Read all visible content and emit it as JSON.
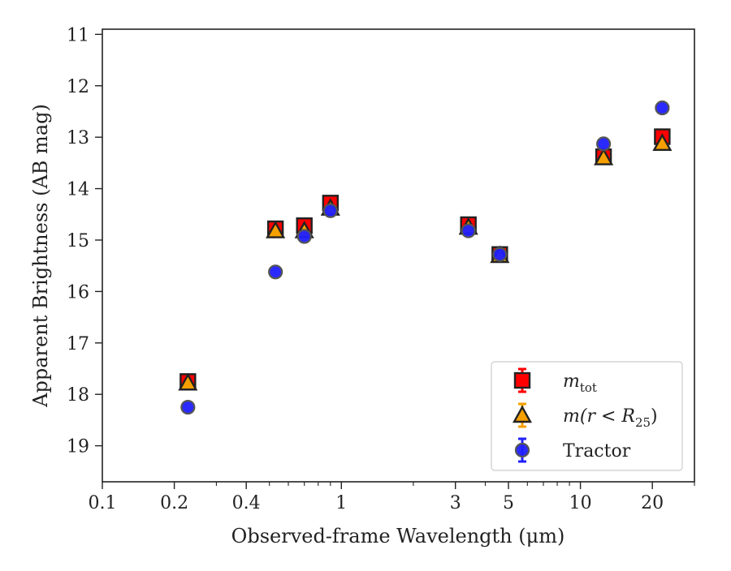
{
  "chart_data": {
    "type": "scatter",
    "title": "",
    "xlabel": "Observed-frame Wavelength (μm)",
    "ylabel": "Apparent Brightness (AB mag)",
    "xscale": "log",
    "xlim": [
      0.1,
      30
    ],
    "ylim": [
      19.7,
      10.9
    ],
    "y_inverted": true,
    "grid": false,
    "legend_position": "lower-right",
    "x_ticks": [
      {
        "value": 0.1,
        "label": "0.1"
      },
      {
        "value": 0.2,
        "label": "0.2"
      },
      {
        "value": 0.4,
        "label": "0.4"
      },
      {
        "value": 1,
        "label": "1"
      },
      {
        "value": 3,
        "label": "3"
      },
      {
        "value": 5,
        "label": "5"
      },
      {
        "value": 10,
        "label": "10"
      },
      {
        "value": 20,
        "label": "20"
      }
    ],
    "x_minor_ticks": [
      0.3,
      0.5,
      0.6,
      0.7,
      0.8,
      0.9,
      2,
      4,
      6,
      7,
      8,
      9,
      30
    ],
    "y_ticks": [
      {
        "value": 11,
        "label": "11"
      },
      {
        "value": 12,
        "label": "12"
      },
      {
        "value": 13,
        "label": "13"
      },
      {
        "value": 14,
        "label": "14"
      },
      {
        "value": 15,
        "label": "15"
      },
      {
        "value": 16,
        "label": "16"
      },
      {
        "value": 17,
        "label": "17"
      },
      {
        "value": 18,
        "label": "18"
      },
      {
        "value": 19,
        "label": "19"
      }
    ],
    "series": [
      {
        "key": "mtot",
        "label_main": "m",
        "label_sub": "tot",
        "label_rest": "",
        "marker": "square",
        "color": "#ff0000",
        "edge": "#222222",
        "x": [
          0.228,
          0.53,
          0.7,
          0.9,
          3.4,
          4.6,
          12.5,
          22.0
        ],
        "y": [
          17.75,
          14.78,
          14.72,
          14.28,
          14.7,
          15.28,
          13.38,
          12.99
        ]
      },
      {
        "key": "mr25",
        "label_main": "m(r < R",
        "label_sub": "25",
        "label_rest": ")",
        "marker": "triangle",
        "color": "#f5a000",
        "edge": "#222222",
        "x": [
          0.228,
          0.53,
          0.7,
          0.9,
          3.4,
          4.6,
          12.5,
          22.0
        ],
        "y": [
          17.78,
          14.82,
          14.82,
          14.38,
          14.75,
          15.3,
          13.4,
          13.12
        ]
      },
      {
        "key": "tractor",
        "label_main": "Tractor",
        "label_sub": "",
        "label_rest": "",
        "marker": "circle",
        "color": "#1f1fff",
        "edge": "#555555",
        "x": [
          0.228,
          0.53,
          0.7,
          0.9,
          3.4,
          4.6,
          12.5,
          22.0
        ],
        "y": [
          18.25,
          15.62,
          14.93,
          14.43,
          14.82,
          15.28,
          13.13,
          12.43
        ]
      }
    ]
  }
}
